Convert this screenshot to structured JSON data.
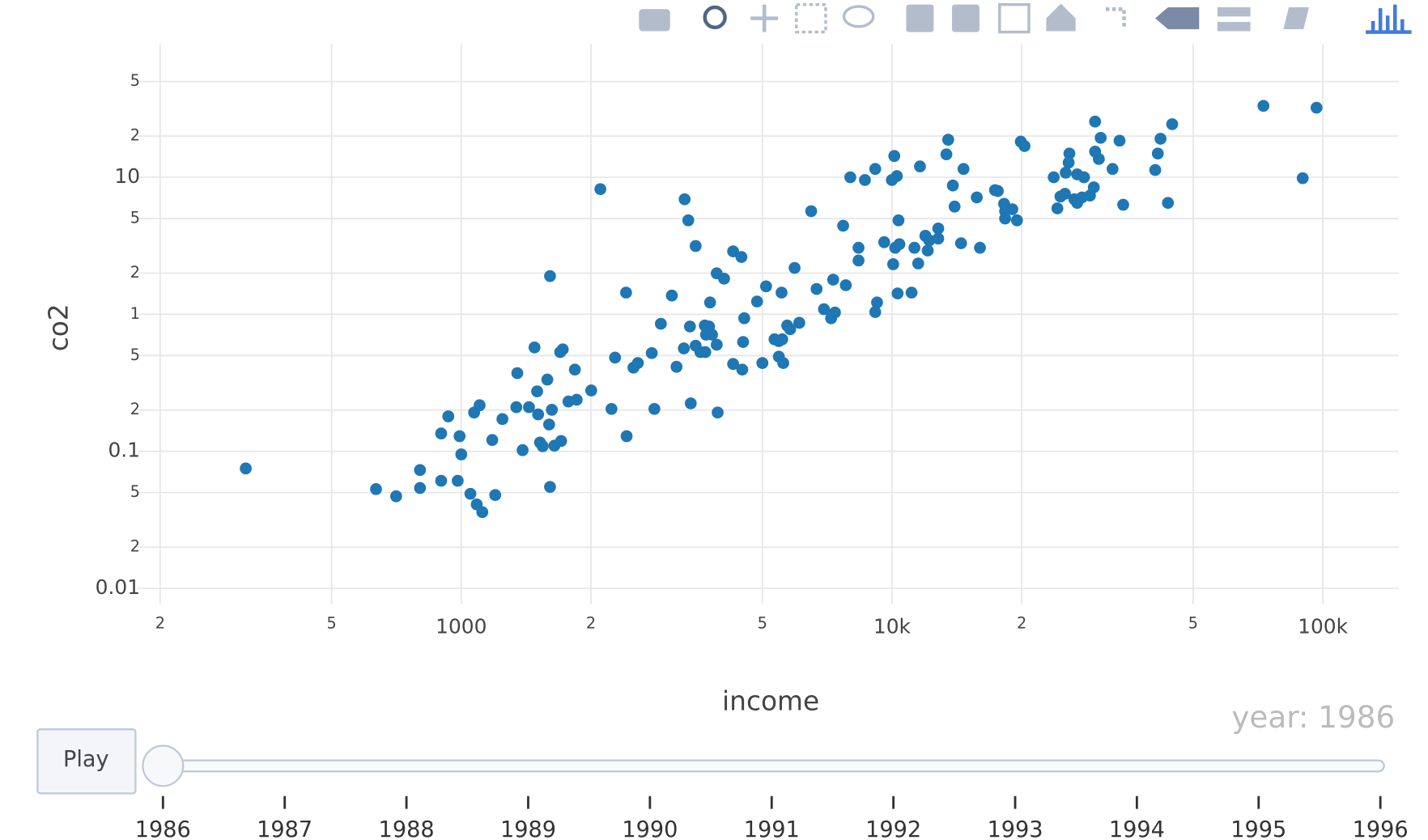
{
  "chart_data": {
    "type": "scatter",
    "log_x": true,
    "log_y": true,
    "grid": true,
    "color": "#1f77b4",
    "x_label": "income",
    "y_label": "co2",
    "xlim": [
      177,
      150000
    ],
    "xticks": [
      {
        "value": 200,
        "label": "2"
      },
      {
        "value": 500,
        "label": "5"
      },
      1000,
      {
        "value": 2000,
        "label": "2"
      },
      {
        "value": 5000,
        "label": "5"
      },
      {
        "value": 10000,
        "label": "10k"
      },
      {
        "value": 20000,
        "label": "2"
      },
      {
        "value": 50000,
        "label": "5"
      },
      {
        "value": 100000,
        "label": "100k"
      }
    ],
    "ylim": [
      0.0077,
      94
    ],
    "yticks": [
      0.01,
      {
        "value": 0.02,
        "label": "2"
      },
      {
        "value": 0.05,
        "label": "5"
      },
      0.1,
      {
        "value": 0.2,
        "label": "2"
      },
      {
        "value": 0.5,
        "label": "5"
      },
      1,
      {
        "value": 2,
        "label": "2"
      },
      {
        "value": 5,
        "label": "5"
      },
      10,
      {
        "value": 20,
        "label": "2"
      },
      {
        "value": 50,
        "label": "5"
      }
    ],
    "x": [
      316,
      634,
      706,
      802,
      802,
      898,
      981,
      1050,
      1086,
      1119,
      1199,
      1607,
      898,
      933,
      991,
      1000,
      1071,
      1103,
      1180,
      1246,
      1349,
      1342,
      1388,
      1436,
      1479,
      1500,
      1508,
      1523,
      1545,
      1584,
      1599,
      1623,
      1645,
      1697,
      1720,
      1705,
      1773,
      1853,
      1835,
      1607,
      2003,
      2103,
      2232,
      2275,
      2413,
      2420,
      2510,
      2570,
      2768,
      2807,
      2906,
      3082,
      3160,
      3286,
      3300,
      3365,
      3395,
      3410,
      3500,
      3500,
      3590,
      3675,
      3685,
      3760,
      3700,
      3820,
      3780,
      3917,
      3937,
      3917,
      4074,
      4276,
      4470,
      4276,
      4490,
      4538,
      4510,
      4860,
      5000,
      5100,
      5335,
      5460,
      5560,
      5460,
      5590,
      5540,
      5710,
      5800,
      5940,
      6090,
      6490,
      6680,
      6950,
      7220,
      7370,
      7300,
      7700,
      7810,
      8000,
      8360,
      8360,
      8650,
      9140,
      9140,
      9230,
      9590,
      9990,
      10060,
      10120,
      10170,
      10260,
      10350,
      10300,
      11100,
      10400,
      11270,
      11610,
      11500,
      11950,
      12200,
      12100,
      12800,
      12800,
      13370,
      13500,
      13840,
      13970,
      14460,
      14650,
      15730,
      16000,
      17340,
      17600,
      18200,
      18300,
      18300,
      19020,
      19500,
      19900,
      20300,
      23730,
      25300,
      24200,
      24600,
      25200,
      25800,
      25700,
      26900,
      27900,
      26900,
      26500,
      27600,
      28800,
      29600,
      29600,
      29400,
      30500,
      30200,
      33740,
      32500,
      34400,
      40830,
      41400,
      42000,
      43700,
      44700,
      72800,
      89800,
      96700
    ],
    "y": [
      0.075,
      0.053,
      0.047,
      0.073,
      0.054,
      0.061,
      0.061,
      0.049,
      0.041,
      0.036,
      0.048,
      0.055,
      0.135,
      0.18,
      0.129,
      0.095,
      0.192,
      0.217,
      0.121,
      0.172,
      0.372,
      0.21,
      0.102,
      0.21,
      0.573,
      0.274,
      0.186,
      0.116,
      0.109,
      0.334,
      0.157,
      0.201,
      0.11,
      0.53,
      0.555,
      0.119,
      0.231,
      0.238,
      0.395,
      1.9,
      0.278,
      8.19,
      0.204,
      0.483,
      1.44,
      0.129,
      0.408,
      0.441,
      0.521,
      0.204,
      0.853,
      1.37,
      0.414,
      0.564,
      6.91,
      4.85,
      0.815,
      0.224,
      3.15,
      0.59,
      0.53,
      0.828,
      0.53,
      0.815,
      0.71,
      0.71,
      1.22,
      0.6,
      0.192,
      1.99,
      1.82,
      2.88,
      2.62,
      0.434,
      0.395,
      0.936,
      0.628,
      1.24,
      0.441,
      1.6,
      0.657,
      0.637,
      0.657,
      0.491,
      0.441,
      1.44,
      0.828,
      0.778,
      2.18,
      0.867,
      5.66,
      1.53,
      1.09,
      0.936,
      1.03,
      1.79,
      4.43,
      1.63,
      10,
      3.06,
      2.47,
      9.55,
      11.5,
      1.04,
      1.22,
      3.36,
      9.55,
      2.32,
      14.3,
      3.06,
      10.2,
      4.85,
      1.42,
      1.44,
      3.25,
      3.06,
      12,
      2.35,
      3.74,
      3.46,
      2.92,
      4.23,
      3.57,
      14.7,
      18.8,
      8.71,
      6.11,
      3.3,
      11.5,
      7.13,
      3.06,
      8.06,
      7.94,
      6.4,
      5.66,
      5,
      5.84,
      4.85,
      18.2,
      16.9,
      10,
      10.8,
      5.93,
      7.24,
      7.58,
      14.9,
      12.8,
      10.5,
      10,
      6.5,
      6.91,
      7.13,
      7.35,
      25.5,
      15.4,
      8.45,
      19.4,
      13.6,
      18.5,
      11.5,
      6.3,
      11.3,
      14.9,
      19.1,
      6.5,
      24.4,
      33.2,
      9.85,
      32.2
    ]
  },
  "slider": {
    "current_label": "year: 1986",
    "button": "Play",
    "steps": [
      "1986",
      "1987",
      "1988",
      "1989",
      "1990",
      "1991",
      "1992",
      "1993",
      "1994",
      "1995",
      "1996"
    ]
  }
}
